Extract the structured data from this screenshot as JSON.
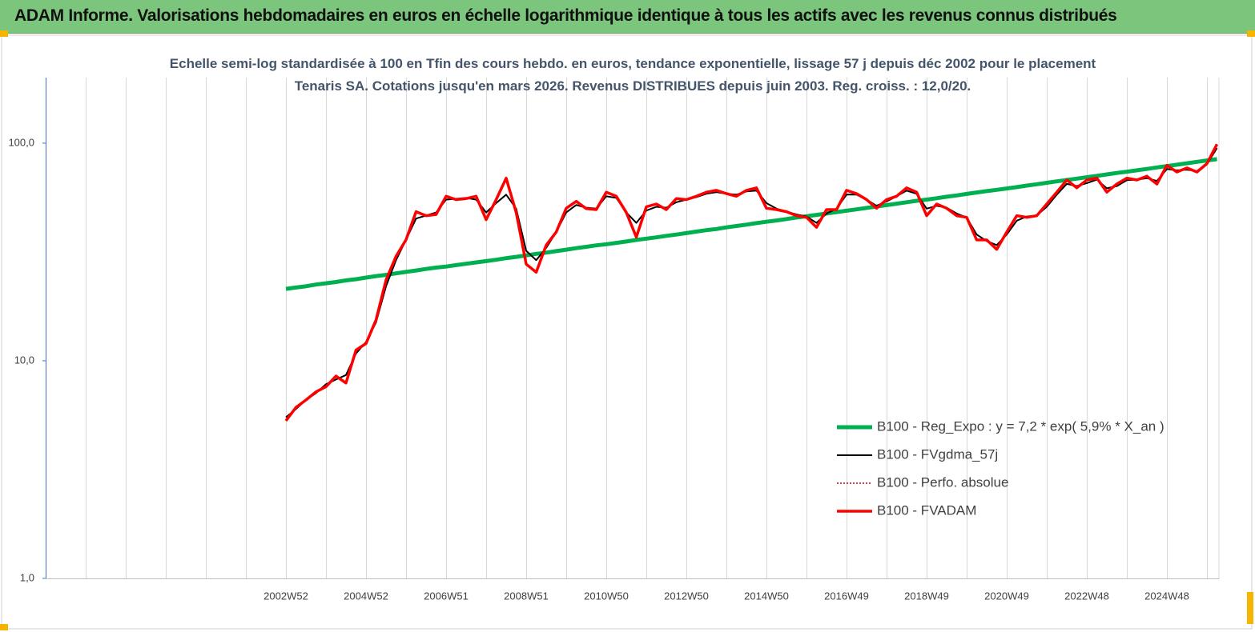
{
  "chart_data": {
    "type": "line",
    "title": "ADAM Informe. Valorisations hebdomadaires en euros en échelle logarithmique identique à tous les actifs avec les revenus connus distribués",
    "subtitle": "Echelle semi-log standardisée à 100 en Tfin des cours hebdo. en euros, tendance exponentielle, lissage 57 j depuis déc 2002 pour le placement Tenaris SA. Cotations jusqu'en mars 2026. Revenus DISTRIBUES depuis juin 2003.  Reg. croiss. : 12,0/20.",
    "log_scale": true,
    "grid": true,
    "legend_position": "lower right",
    "ylim": [
      1,
      200
    ],
    "yticks": [
      {
        "value": 1,
        "label": "1,0"
      },
      {
        "value": 10,
        "label": "10,0"
      },
      {
        "value": 100,
        "label": "100,0"
      }
    ],
    "categories": [
      null,
      null,
      null,
      null,
      null,
      null,
      null,
      null,
      null,
      null,
      null,
      null,
      null,
      null,
      null,
      null,
      null,
      null,
      null,
      null,
      null,
      null,
      null,
      null,
      "2002W52",
      null,
      null,
      null,
      null,
      null,
      null,
      null,
      "2004W52",
      null,
      null,
      null,
      null,
      null,
      null,
      null,
      "2006W51",
      null,
      null,
      null,
      null,
      null,
      null,
      null,
      "2008W51",
      null,
      null,
      null,
      null,
      null,
      null,
      null,
      "2010W50",
      null,
      null,
      null,
      null,
      null,
      null,
      null,
      "2012W50",
      null,
      null,
      null,
      null,
      null,
      null,
      null,
      "2014W50",
      null,
      null,
      null,
      null,
      null,
      null,
      null,
      "2016W49",
      null,
      null,
      null,
      null,
      null,
      null,
      null,
      "2018W49",
      null,
      null,
      null,
      null,
      null,
      null,
      null,
      "2020W49",
      null,
      null,
      null,
      null,
      null,
      null,
      null,
      "2022W48",
      null,
      null,
      null,
      null,
      null,
      null,
      null,
      "2024W48",
      null,
      null,
      null,
      null,
      null
    ],
    "series": [
      {
        "name": "B100 - Reg_Expo : y = 7,2 * exp( 5,9% *  X_an )",
        "color": "#00b050",
        "width": 5,
        "style": "solid",
        "values": [
          null,
          null,
          null,
          null,
          null,
          null,
          null,
          null,
          null,
          null,
          null,
          null,
          null,
          null,
          null,
          null,
          null,
          null,
          null,
          null,
          null,
          null,
          null,
          null,
          21.4,
          21.7,
          22.0,
          22.4,
          22.7,
          23.0,
          23.4,
          23.7,
          24.1,
          24.5,
          24.8,
          25.2,
          25.6,
          26.0,
          26.4,
          26.8,
          27.1,
          27.5,
          27.9,
          28.3,
          28.7,
          29.1,
          29.6,
          30.0,
          30.5,
          31.0,
          31.4,
          31.9,
          32.4,
          32.9,
          33.4,
          33.9,
          34.3,
          34.8,
          35.3,
          35.9,
          36.4,
          36.9,
          37.5,
          38.0,
          38.6,
          39.2,
          39.8,
          40.3,
          41.0,
          41.6,
          42.2,
          42.9,
          43.5,
          44.1,
          44.8,
          45.5,
          46.1,
          46.8,
          47.5,
          48.2,
          48.9,
          49.6,
          50.4,
          51.1,
          51.9,
          52.7,
          53.5,
          54.3,
          55.0,
          55.8,
          56.7,
          57.5,
          58.4,
          59.3,
          60.2,
          61.0,
          61.9,
          62.8,
          63.8,
          64.7,
          65.7,
          66.7,
          67.7,
          68.7,
          69.7,
          70.7,
          71.8,
          72.9,
          73.9,
          75.0,
          76.1,
          77.3,
          78.4,
          79.6,
          80.8,
          82.0,
          83.2,
          84.4
        ]
      },
      {
        "name": "B100 - FVgdma_57j",
        "color": "#000000",
        "width": 2,
        "style": "solid",
        "values": [
          null,
          null,
          null,
          null,
          null,
          null,
          null,
          null,
          null,
          null,
          null,
          null,
          null,
          null,
          null,
          null,
          null,
          null,
          null,
          null,
          null,
          null,
          null,
          null,
          5.5,
          6.0,
          6.6,
          7.1,
          7.8,
          8.2,
          8.6,
          10.8,
          12.2,
          15.0,
          22.0,
          29.0,
          36.0,
          45.0,
          46.5,
          48.0,
          55.0,
          55.5,
          56.0,
          55.0,
          48.0,
          53.0,
          58.0,
          50.0,
          32.0,
          29.0,
          33.0,
          39.0,
          48.0,
          52.0,
          50.5,
          50.0,
          57.0,
          56.0,
          48.0,
          43.0,
          49.0,
          51.0,
          50.5,
          53.5,
          55.0,
          56.5,
          58.5,
          59.5,
          58.5,
          58.0,
          60.0,
          60.5,
          53.0,
          50.0,
          48.5,
          47.0,
          46.0,
          43.0,
          47.5,
          50.0,
          58.0,
          58.0,
          55.0,
          51.5,
          54.0,
          57.0,
          60.5,
          58.5,
          50.0,
          51.5,
          50.5,
          47.5,
          45.5,
          38.0,
          35.5,
          34.0,
          38.0,
          44.0,
          46.0,
          46.5,
          51.0,
          58.0,
          65.0,
          63.5,
          65.5,
          68.0,
          62.0,
          63.5,
          67.5,
          68.0,
          69.0,
          67.0,
          76.0,
          75.0,
          75.5,
          74.5,
          80.0,
          95.0
        ]
      },
      {
        "name": "B100 - Perfo. absolue",
        "color": "#c00000",
        "width": 1.5,
        "style": "dotted",
        "values": [
          null,
          null,
          null,
          null,
          null,
          null,
          null,
          null,
          null,
          null,
          null,
          null,
          null,
          null,
          null,
          null,
          null,
          null,
          null,
          null,
          null,
          null,
          null,
          null,
          5.3,
          6.1,
          6.6,
          7.2,
          7.6,
          8.5,
          7.9,
          11.2,
          12.0,
          15.4,
          23.5,
          30.2,
          36.0,
          48.4,
          46.4,
          47.0,
          57.0,
          55.0,
          55.6,
          57.0,
          44.5,
          55.0,
          69.0,
          48.0,
          27.8,
          25.5,
          34.0,
          39.0,
          50.2,
          54.0,
          50.0,
          49.5,
          59.5,
          57.0,
          48.0,
          37.0,
          51.0,
          52.5,
          49.5,
          55.6,
          55.0,
          57.0,
          59.5,
          60.7,
          58.6,
          57.0,
          60.7,
          62.3,
          50.2,
          49.5,
          48.4,
          46.4,
          45.6,
          41.0,
          49.5,
          49.5,
          60.7,
          58.6,
          55.0,
          50.2,
          55.0,
          57.0,
          62.3,
          59.5,
          46.4,
          52.5,
          50.2,
          46.4,
          45.6,
          35.9,
          35.9,
          32.5,
          39.0,
          46.4,
          45.6,
          46.4,
          52.5,
          59.5,
          67.7,
          62.3,
          67.7,
          69.1,
          59.5,
          64.9,
          69.1,
          67.7,
          70.5,
          64.9,
          79.0,
          73.7,
          76.9,
          73.7,
          80.5,
          98.8
        ]
      },
      {
        "name": "B100 - FVADAM",
        "color": "#ff0000",
        "width": 3.5,
        "style": "solid",
        "values": [
          null,
          null,
          null,
          null,
          null,
          null,
          null,
          null,
          null,
          null,
          null,
          null,
          null,
          null,
          null,
          null,
          null,
          null,
          null,
          null,
          null,
          null,
          null,
          null,
          5.3,
          6.1,
          6.6,
          7.2,
          7.6,
          8.5,
          7.9,
          11.2,
          12.0,
          15.4,
          23.5,
          30.2,
          36.0,
          48.4,
          46.4,
          47.0,
          57.0,
          55.0,
          55.6,
          57.0,
          44.5,
          55.0,
          69.0,
          48.0,
          27.8,
          25.5,
          34.0,
          39.0,
          50.2,
          54.0,
          50.0,
          49.5,
          59.5,
          57.0,
          48.0,
          37.0,
          51.0,
          52.5,
          49.5,
          55.6,
          55.0,
          57.0,
          59.5,
          60.7,
          58.6,
          57.0,
          60.7,
          62.3,
          50.2,
          49.5,
          48.4,
          46.4,
          45.6,
          41.0,
          49.5,
          49.5,
          60.7,
          58.6,
          55.0,
          50.2,
          55.0,
          57.0,
          62.3,
          59.5,
          46.4,
          52.5,
          50.2,
          46.4,
          45.6,
          35.9,
          35.9,
          32.5,
          39.0,
          46.4,
          45.6,
          46.4,
          52.5,
          59.5,
          67.7,
          62.3,
          67.7,
          69.1,
          59.5,
          64.9,
          69.1,
          67.7,
          70.5,
          64.9,
          79.0,
          73.7,
          76.9,
          73.7,
          80.5,
          98.8
        ]
      }
    ]
  }
}
